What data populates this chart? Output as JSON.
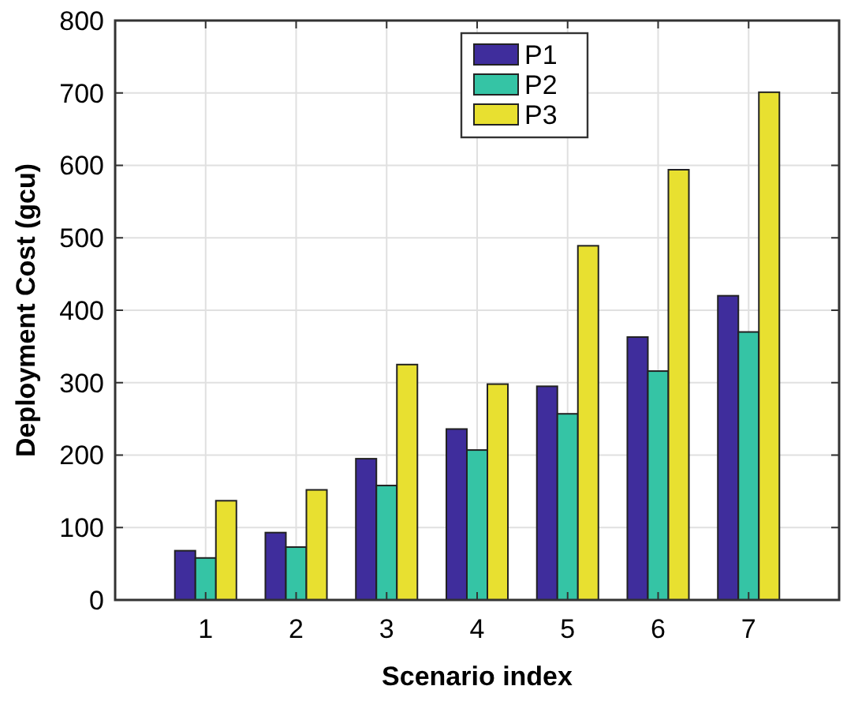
{
  "chart_data": {
    "type": "bar",
    "xlabel": "Scenario index",
    "ylabel": "Deployment Cost (gcu)",
    "categories": [
      "1",
      "2",
      "3",
      "4",
      "5",
      "6",
      "7"
    ],
    "series": [
      {
        "name": "P1",
        "color": "#3f2d9c",
        "values": [
          68,
          93,
          195,
          236,
          295,
          363,
          420
        ]
      },
      {
        "name": "P2",
        "color": "#35c4a5",
        "values": [
          58,
          73,
          158,
          207,
          257,
          316,
          370
        ]
      },
      {
        "name": "P3",
        "color": "#e8e030",
        "values": [
          137,
          152,
          325,
          298,
          489,
          594,
          701
        ]
      }
    ],
    "ylim": [
      0,
      800
    ],
    "yticks": [
      0,
      100,
      200,
      300,
      400,
      500,
      600,
      700,
      800
    ],
    "grid": true,
    "legend": "top"
  }
}
